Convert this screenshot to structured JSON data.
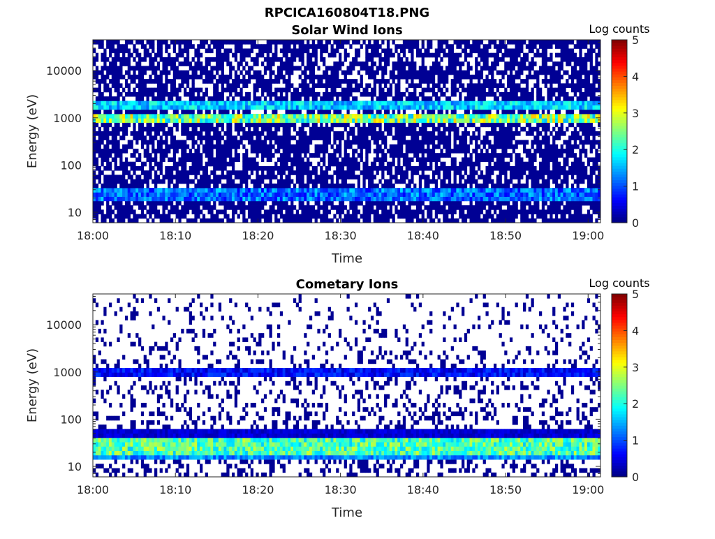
{
  "figure": {
    "title": "RPCICA160804T18.PNG"
  },
  "chart_data": [
    {
      "type": "heatmap",
      "title": "Solar Wind Ions",
      "xlabel": "Time",
      "ylabel": "Energy (eV)",
      "x_ticks": [
        "18:00",
        "18:10",
        "18:20",
        "18:30",
        "18:40",
        "18:50",
        "19:00"
      ],
      "x_tick_minutes": [
        0,
        10,
        20,
        30,
        40,
        50,
        60
      ],
      "xlim_minutes": [
        0,
        61.5
      ],
      "y_scale": "log",
      "y_ticks": [
        "10",
        "100",
        "1000",
        "10000"
      ],
      "y_tick_values": [
        10,
        100,
        1000,
        10000
      ],
      "ylim": [
        6,
        45000
      ],
      "colorbar": {
        "label": "Log counts",
        "ticks": [
          "0",
          "1",
          "2",
          "3",
          "4",
          "5"
        ],
        "range": [
          0,
          5
        ],
        "colormap": "jet"
      },
      "bands": [
        {
          "energy_low": 750,
          "energy_high": 1300,
          "level_min": 1.5,
          "level_max": 3.4
        },
        {
          "energy_low": 1600,
          "energy_high": 2300,
          "level_min": 1.1,
          "level_max": 2.2
        },
        {
          "energy_low": 18,
          "energy_high": 34,
          "level_min": 0.6,
          "level_max": 1.7
        }
      ],
      "background": {
        "level": 0.1,
        "coverage_high_energy": 0.65,
        "coverage_low_energy": 0.8
      }
    },
    {
      "type": "heatmap",
      "title": "Cometary Ions",
      "xlabel": "Time",
      "ylabel": "Energy (eV)",
      "x_ticks": [
        "18:00",
        "18:10",
        "18:20",
        "18:30",
        "18:40",
        "18:50",
        "19:00"
      ],
      "x_tick_minutes": [
        0,
        10,
        20,
        30,
        40,
        50,
        60
      ],
      "xlim_minutes": [
        0,
        61.5
      ],
      "y_scale": "log",
      "y_ticks": [
        "10",
        "100",
        "1000",
        "10000"
      ],
      "y_tick_values": [
        10,
        100,
        1000,
        10000
      ],
      "ylim": [
        6,
        45000
      ],
      "colorbar": {
        "label": "Log counts",
        "ticks": [
          "0",
          "1",
          "2",
          "3",
          "4",
          "5"
        ],
        "range": [
          0,
          5
        ],
        "colormap": "jet"
      },
      "bands": [
        {
          "energy_low": 19,
          "energy_high": 38,
          "level_min": 1.6,
          "level_max": 2.9
        },
        {
          "energy_low": 14,
          "energy_high": 19,
          "level_min": 0.9,
          "level_max": 1.7
        },
        {
          "energy_low": 40,
          "energy_high": 60,
          "level_min": 0.2,
          "level_max": 0.6
        },
        {
          "energy_low": 800,
          "energy_high": 1200,
          "level_min": 0.3,
          "level_max": 1.0
        }
      ],
      "background": {
        "level": 0.1,
        "coverage_high_energy": 0.08,
        "coverage_low_energy": 0.35
      }
    }
  ]
}
